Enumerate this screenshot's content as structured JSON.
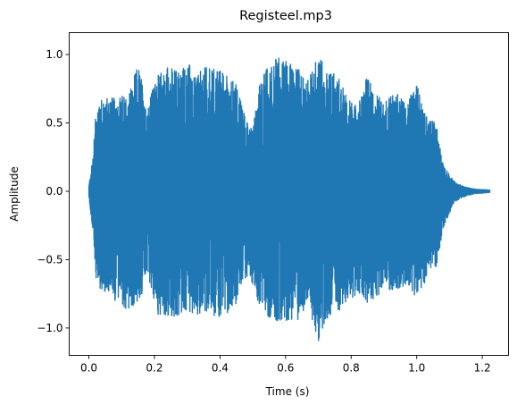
{
  "chart_data": {
    "type": "line",
    "title": "Registeel.mp3",
    "xlabel": "Time (s)",
    "ylabel": "Amplitude",
    "xlim": [
      -0.06,
      1.28
    ],
    "ylim": [
      -1.2,
      1.16
    ],
    "xticks": [
      0.0,
      0.2,
      0.4,
      0.6,
      0.8,
      1.0,
      1.2
    ],
    "xtick_labels": [
      "0.0",
      "0.2",
      "0.4",
      "0.6",
      "0.8",
      "1.0",
      "1.2"
    ],
    "yticks": [
      -1.0,
      -0.5,
      0.0,
      0.5,
      1.0
    ],
    "ytick_labels": [
      "−1.0",
      "−0.5",
      "0.0",
      "0.5",
      "1.0"
    ],
    "grid": false,
    "legend": "none",
    "series": [
      {
        "color": "#1f77b4",
        "duration": 1.223,
        "envelope": {
          "t": [
            0.0,
            0.012,
            0.02,
            0.035,
            0.05,
            0.08,
            0.12,
            0.15,
            0.18,
            0.21,
            0.24,
            0.27,
            0.3,
            0.33,
            0.36,
            0.39,
            0.42,
            0.45,
            0.48,
            0.5,
            0.52,
            0.55,
            0.58,
            0.61,
            0.64,
            0.67,
            0.7,
            0.73,
            0.76,
            0.79,
            0.82,
            0.85,
            0.88,
            0.91,
            0.94,
            0.97,
            1.0,
            1.03,
            1.06,
            1.08,
            1.1,
            1.12,
            1.15,
            1.18,
            1.223
          ],
          "max": [
            0.04,
            0.25,
            0.55,
            0.72,
            0.7,
            0.68,
            0.72,
            0.92,
            0.65,
            0.85,
            0.92,
            0.88,
            0.95,
            0.85,
            0.93,
            0.9,
            0.86,
            0.78,
            0.55,
            0.48,
            0.78,
            0.95,
            0.98,
            0.95,
            0.9,
            0.82,
            1.0,
            0.9,
            0.85,
            0.68,
            0.62,
            0.85,
            0.7,
            0.68,
            0.75,
            0.65,
            0.78,
            0.55,
            0.5,
            0.2,
            0.12,
            0.06,
            0.03,
            0.015,
            0.01
          ],
          "min": [
            -0.04,
            -0.3,
            -0.62,
            -0.72,
            -0.75,
            -0.8,
            -0.88,
            -0.82,
            -0.65,
            -0.9,
            -0.93,
            -0.92,
            -0.88,
            -0.9,
            -0.88,
            -0.93,
            -0.9,
            -0.82,
            -0.62,
            -0.68,
            -0.85,
            -0.93,
            -0.95,
            -0.95,
            -0.95,
            -0.9,
            -1.1,
            -0.92,
            -0.88,
            -0.8,
            -0.75,
            -0.82,
            -0.78,
            -0.72,
            -0.72,
            -0.68,
            -0.82,
            -0.65,
            -0.55,
            -0.28,
            -0.16,
            -0.07,
            -0.035,
            -0.018,
            -0.01
          ]
        }
      }
    ]
  }
}
